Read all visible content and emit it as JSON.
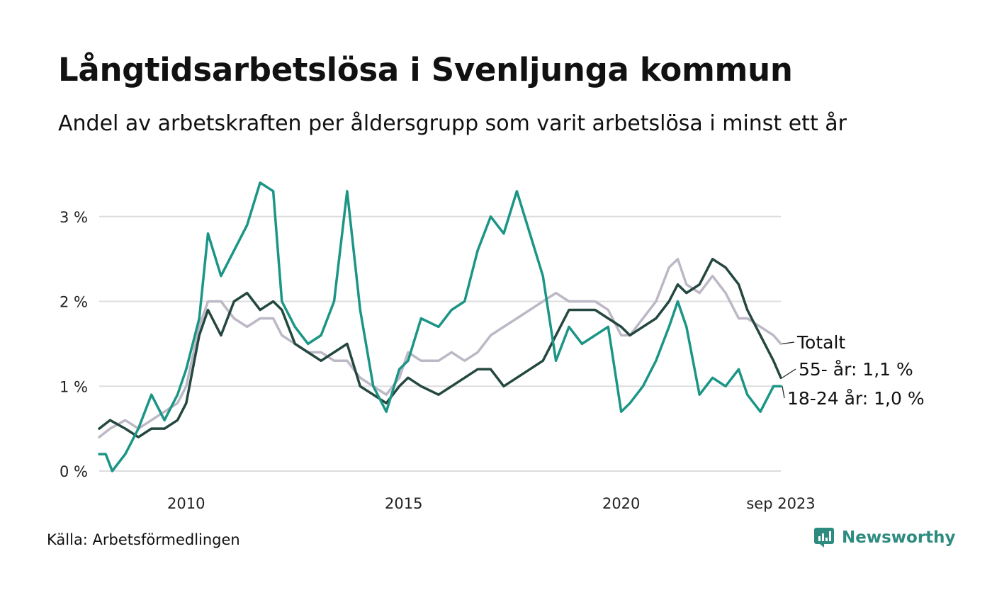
{
  "title": "Långtidsarbetslösa i Svenljunga kommun",
  "subtitle": "Andel av arbetskraften per åldersgrupp som varit arbetslösa i minst ett år",
  "source": "Källa: Arbetsförmedlingen",
  "brand": {
    "name": "Newsworthy",
    "color": "#2e8b80"
  },
  "chart_data": {
    "type": "line",
    "title": "Långtidsarbetslösa i Svenljunga kommun",
    "ylabel": "",
    "xlabel": "",
    "xlim": [
      2008.0,
      2023.67
    ],
    "ylim": [
      0,
      3.8
    ],
    "yticks": [
      0,
      1,
      2,
      3
    ],
    "ytick_labels": [
      "0 %",
      "1 %",
      "2 %",
      "3 %"
    ],
    "xticks": [
      2010,
      2015,
      2020,
      2023.67
    ],
    "xtick_labels": [
      "2010",
      "2015",
      "2020",
      "sep 2023"
    ],
    "grid": true,
    "series": [
      {
        "name": "Totalt",
        "end_label": "Totalt",
        "color": "#bdb8c6",
        "points": [
          [
            2008.0,
            0.4
          ],
          [
            2008.25,
            0.5
          ],
          [
            2008.6,
            0.6
          ],
          [
            2008.9,
            0.5
          ],
          [
            2009.2,
            0.6
          ],
          [
            2009.5,
            0.7
          ],
          [
            2009.8,
            0.8
          ],
          [
            2010.0,
            1.0
          ],
          [
            2010.3,
            1.7
          ],
          [
            2010.5,
            2.0
          ],
          [
            2010.8,
            2.0
          ],
          [
            2011.1,
            1.8
          ],
          [
            2011.4,
            1.7
          ],
          [
            2011.7,
            1.8
          ],
          [
            2012.0,
            1.8
          ],
          [
            2012.2,
            1.6
          ],
          [
            2012.5,
            1.5
          ],
          [
            2012.8,
            1.4
          ],
          [
            2013.1,
            1.4
          ],
          [
            2013.4,
            1.3
          ],
          [
            2013.7,
            1.3
          ],
          [
            2014.0,
            1.1
          ],
          [
            2014.3,
            1.0
          ],
          [
            2014.6,
            0.9
          ],
          [
            2014.9,
            1.1
          ],
          [
            2015.1,
            1.4
          ],
          [
            2015.4,
            1.3
          ],
          [
            2015.8,
            1.3
          ],
          [
            2016.1,
            1.4
          ],
          [
            2016.4,
            1.3
          ],
          [
            2016.7,
            1.4
          ],
          [
            2017.0,
            1.6
          ],
          [
            2017.3,
            1.7
          ],
          [
            2017.6,
            1.8
          ],
          [
            2017.9,
            1.9
          ],
          [
            2018.2,
            2.0
          ],
          [
            2018.5,
            2.1
          ],
          [
            2018.8,
            2.0
          ],
          [
            2019.1,
            2.0
          ],
          [
            2019.4,
            2.0
          ],
          [
            2019.7,
            1.9
          ],
          [
            2020.0,
            1.6
          ],
          [
            2020.2,
            1.6
          ],
          [
            2020.5,
            1.8
          ],
          [
            2020.8,
            2.0
          ],
          [
            2021.1,
            2.4
          ],
          [
            2021.3,
            2.5
          ],
          [
            2021.5,
            2.2
          ],
          [
            2021.8,
            2.1
          ],
          [
            2022.1,
            2.3
          ],
          [
            2022.4,
            2.1
          ],
          [
            2022.7,
            1.8
          ],
          [
            2022.9,
            1.8
          ],
          [
            2023.2,
            1.7
          ],
          [
            2023.5,
            1.6
          ],
          [
            2023.67,
            1.5
          ]
        ]
      },
      {
        "name": "55- år",
        "end_label": "55- år: 1,1 %",
        "color": "#24473f",
        "points": [
          [
            2008.0,
            0.5
          ],
          [
            2008.25,
            0.6
          ],
          [
            2008.6,
            0.5
          ],
          [
            2008.9,
            0.4
          ],
          [
            2009.2,
            0.5
          ],
          [
            2009.5,
            0.5
          ],
          [
            2009.8,
            0.6
          ],
          [
            2010.0,
            0.8
          ],
          [
            2010.3,
            1.6
          ],
          [
            2010.5,
            1.9
          ],
          [
            2010.8,
            1.6
          ],
          [
            2011.1,
            2.0
          ],
          [
            2011.4,
            2.1
          ],
          [
            2011.7,
            1.9
          ],
          [
            2012.0,
            2.0
          ],
          [
            2012.2,
            1.9
          ],
          [
            2012.5,
            1.5
          ],
          [
            2012.8,
            1.4
          ],
          [
            2013.1,
            1.3
          ],
          [
            2013.4,
            1.4
          ],
          [
            2013.7,
            1.5
          ],
          [
            2014.0,
            1.0
          ],
          [
            2014.3,
            0.9
          ],
          [
            2014.6,
            0.8
          ],
          [
            2014.9,
            1.0
          ],
          [
            2015.1,
            1.1
          ],
          [
            2015.4,
            1.0
          ],
          [
            2015.8,
            0.9
          ],
          [
            2016.1,
            1.0
          ],
          [
            2016.4,
            1.1
          ],
          [
            2016.7,
            1.2
          ],
          [
            2017.0,
            1.2
          ],
          [
            2017.3,
            1.0
          ],
          [
            2017.6,
            1.1
          ],
          [
            2017.9,
            1.2
          ],
          [
            2018.2,
            1.3
          ],
          [
            2018.5,
            1.6
          ],
          [
            2018.8,
            1.9
          ],
          [
            2019.1,
            1.9
          ],
          [
            2019.4,
            1.9
          ],
          [
            2019.7,
            1.8
          ],
          [
            2020.0,
            1.7
          ],
          [
            2020.2,
            1.6
          ],
          [
            2020.5,
            1.7
          ],
          [
            2020.8,
            1.8
          ],
          [
            2021.1,
            2.0
          ],
          [
            2021.3,
            2.2
          ],
          [
            2021.5,
            2.1
          ],
          [
            2021.8,
            2.2
          ],
          [
            2022.1,
            2.5
          ],
          [
            2022.4,
            2.4
          ],
          [
            2022.7,
            2.2
          ],
          [
            2022.9,
            1.9
          ],
          [
            2023.2,
            1.6
          ],
          [
            2023.5,
            1.3
          ],
          [
            2023.67,
            1.1
          ]
        ]
      },
      {
        "name": "18-24 år",
        "end_label": "18-24 år: 1,0 %",
        "color": "#1b9585",
        "points": [
          [
            2008.0,
            0.2
          ],
          [
            2008.15,
            0.2
          ],
          [
            2008.3,
            0.0
          ],
          [
            2008.45,
            0.1
          ],
          [
            2008.6,
            0.2
          ],
          [
            2008.9,
            0.5
          ],
          [
            2009.2,
            0.9
          ],
          [
            2009.5,
            0.6
          ],
          [
            2009.8,
            0.9
          ],
          [
            2010.0,
            1.2
          ],
          [
            2010.3,
            1.8
          ],
          [
            2010.5,
            2.8
          ],
          [
            2010.8,
            2.3
          ],
          [
            2011.1,
            2.6
          ],
          [
            2011.4,
            2.9
          ],
          [
            2011.7,
            3.4
          ],
          [
            2012.0,
            3.3
          ],
          [
            2012.2,
            2.0
          ],
          [
            2012.5,
            1.7
          ],
          [
            2012.8,
            1.5
          ],
          [
            2013.1,
            1.6
          ],
          [
            2013.4,
            2.0
          ],
          [
            2013.7,
            3.3
          ],
          [
            2014.0,
            1.9
          ],
          [
            2014.3,
            1.0
          ],
          [
            2014.6,
            0.7
          ],
          [
            2014.9,
            1.2
          ],
          [
            2015.1,
            1.3
          ],
          [
            2015.4,
            1.8
          ],
          [
            2015.8,
            1.7
          ],
          [
            2016.1,
            1.9
          ],
          [
            2016.4,
            2.0
          ],
          [
            2016.7,
            2.6
          ],
          [
            2017.0,
            3.0
          ],
          [
            2017.3,
            2.8
          ],
          [
            2017.6,
            3.3
          ],
          [
            2017.9,
            2.8
          ],
          [
            2018.2,
            2.3
          ],
          [
            2018.5,
            1.3
          ],
          [
            2018.8,
            1.7
          ],
          [
            2019.1,
            1.5
          ],
          [
            2019.4,
            1.6
          ],
          [
            2019.7,
            1.7
          ],
          [
            2020.0,
            0.7
          ],
          [
            2020.2,
            0.8
          ],
          [
            2020.5,
            1.0
          ],
          [
            2020.8,
            1.3
          ],
          [
            2021.1,
            1.7
          ],
          [
            2021.3,
            2.0
          ],
          [
            2021.5,
            1.7
          ],
          [
            2021.8,
            0.9
          ],
          [
            2022.1,
            1.1
          ],
          [
            2022.4,
            1.0
          ],
          [
            2022.7,
            1.2
          ],
          [
            2022.9,
            0.9
          ],
          [
            2023.2,
            0.7
          ],
          [
            2023.5,
            1.0
          ],
          [
            2023.67,
            1.0
          ]
        ]
      }
    ]
  }
}
